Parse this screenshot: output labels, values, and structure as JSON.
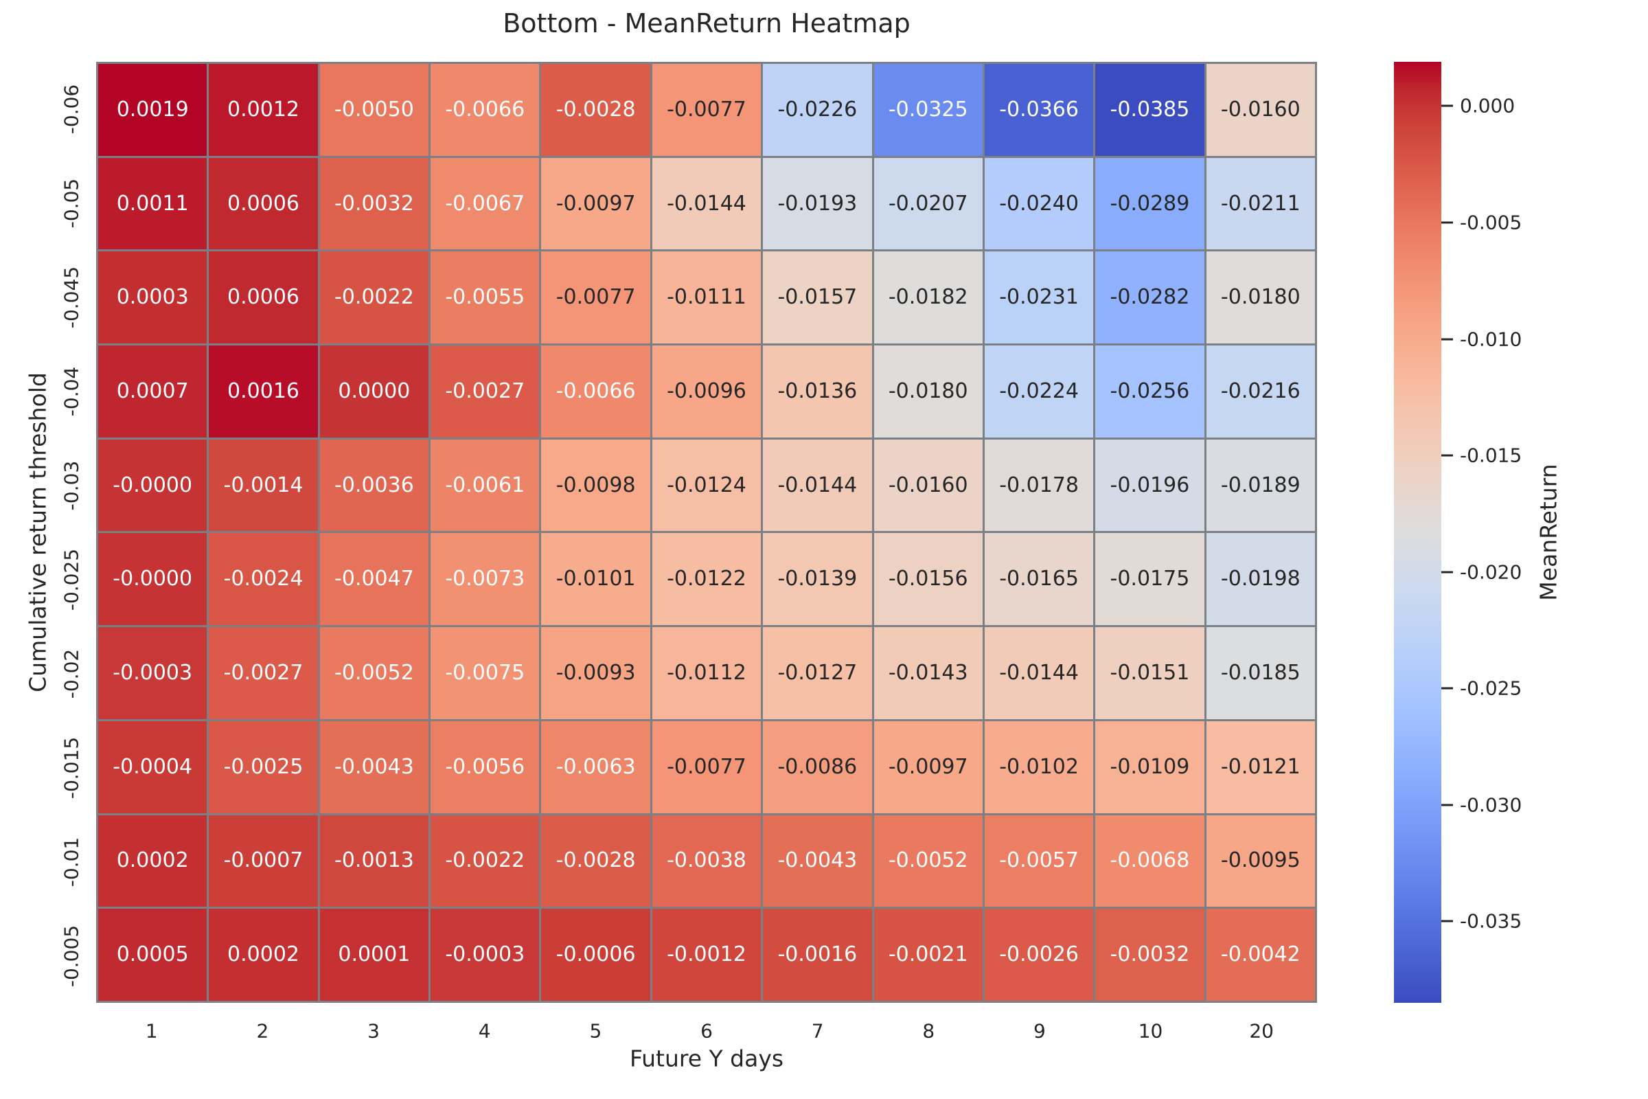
{
  "chart_data": {
    "type": "heatmap",
    "title": "Bottom - MeanReturn Heatmap",
    "xlabel": "Future Y days",
    "ylabel": "Cumulative return threshold",
    "x_ticklabels": [
      "1",
      "2",
      "3",
      "4",
      "5",
      "6",
      "7",
      "8",
      "9",
      "10",
      "20"
    ],
    "y_ticklabels": [
      "-0.06",
      "-0.05",
      "-0.045",
      "-0.04",
      "-0.03",
      "-0.025",
      "-0.02",
      "-0.015",
      "-0.01",
      "-0.005"
    ],
    "cells": [
      [
        "0.0019",
        "0.0012",
        "-0.0050",
        "-0.0066",
        "-0.0028",
        "-0.0077",
        "-0.0226",
        "-0.0325",
        "-0.0366",
        "-0.0385",
        "-0.0160"
      ],
      [
        "0.0011",
        "0.0006",
        "-0.0032",
        "-0.0067",
        "-0.0097",
        "-0.0144",
        "-0.0193",
        "-0.0207",
        "-0.0240",
        "-0.0289",
        "-0.0211"
      ],
      [
        "0.0003",
        "0.0006",
        "-0.0022",
        "-0.0055",
        "-0.0077",
        "-0.0111",
        "-0.0157",
        "-0.0182",
        "-0.0231",
        "-0.0282",
        "-0.0180"
      ],
      [
        "0.0007",
        "0.0016",
        "0.0000",
        "-0.0027",
        "-0.0066",
        "-0.0096",
        "-0.0136",
        "-0.0180",
        "-0.0224",
        "-0.0256",
        "-0.0216"
      ],
      [
        "-0.0000",
        "-0.0014",
        "-0.0036",
        "-0.0061",
        "-0.0098",
        "-0.0124",
        "-0.0144",
        "-0.0160",
        "-0.0178",
        "-0.0196",
        "-0.0189"
      ],
      [
        "-0.0000",
        "-0.0024",
        "-0.0047",
        "-0.0073",
        "-0.0101",
        "-0.0122",
        "-0.0139",
        "-0.0156",
        "-0.0165",
        "-0.0175",
        "-0.0198"
      ],
      [
        "-0.0003",
        "-0.0027",
        "-0.0052",
        "-0.0075",
        "-0.0093",
        "-0.0112",
        "-0.0127",
        "-0.0143",
        "-0.0144",
        "-0.0151",
        "-0.0185"
      ],
      [
        "-0.0004",
        "-0.0025",
        "-0.0043",
        "-0.0056",
        "-0.0063",
        "-0.0077",
        "-0.0086",
        "-0.0097",
        "-0.0102",
        "-0.0109",
        "-0.0121"
      ],
      [
        "0.0002",
        "-0.0007",
        "-0.0013",
        "-0.0022",
        "-0.0028",
        "-0.0038",
        "-0.0043",
        "-0.0052",
        "-0.0057",
        "-0.0068",
        "-0.0095"
      ],
      [
        "0.0005",
        "0.0002",
        "0.0001",
        "-0.0003",
        "-0.0006",
        "-0.0012",
        "-0.0016",
        "-0.0021",
        "-0.0026",
        "-0.0032",
        "-0.0042"
      ]
    ],
    "colormap": "coolwarm",
    "vmin": -0.0385,
    "vmax": 0.0019,
    "grid_line_color": "#7a8086",
    "text_color": "#262626",
    "colorbar": {
      "label": "MeanReturn",
      "tick_labels": [
        "0.000",
        "-0.005",
        "-0.010",
        "-0.015",
        "-0.020",
        "-0.025",
        "-0.030",
        "-0.035"
      ],
      "tick_values": [
        0.0,
        -0.005,
        -0.01,
        -0.015,
        -0.02,
        -0.025,
        -0.03,
        -0.035
      ]
    }
  }
}
